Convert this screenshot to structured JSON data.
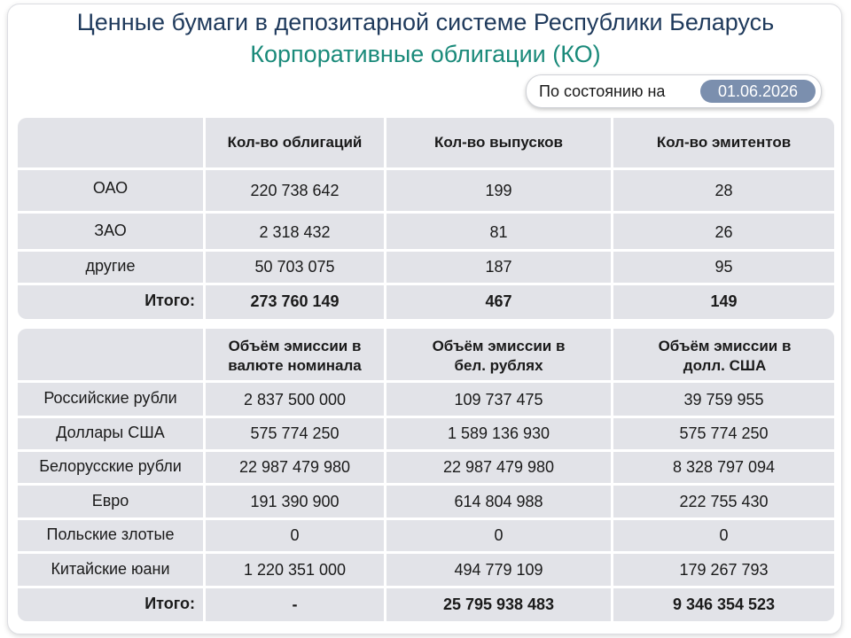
{
  "header": {
    "title": "Ценные бумаги в депозитарной системе Республики Беларусь",
    "subtitle": "Корпоративные облигации (КО)",
    "as_of_label": "По состоянию на",
    "as_of_date": "01.06.2026"
  },
  "table1": {
    "columns": [
      "Кол-во облигаций",
      "Кол-во выпусков",
      "Кол-во эмитентов"
    ],
    "rows": [
      {
        "label": "ОАО",
        "cells": [
          "220 738 642",
          "199",
          "28"
        ]
      },
      {
        "label": "ЗАО",
        "cells": [
          "2 318 432",
          "81",
          "26"
        ]
      },
      {
        "label": "другие",
        "cells": [
          "50 703 075",
          "187",
          "95"
        ]
      }
    ],
    "total": {
      "label": "Итого:",
      "cells": [
        "273 760 149",
        "467",
        "149"
      ]
    }
  },
  "table2": {
    "columns": [
      "Объём эмиссии в валюте номинала",
      "Объём эмиссии в бел. рублях",
      "Объём эмиссии в долл. США"
    ],
    "rows": [
      {
        "label": "Российские рубли",
        "cells": [
          "2 837 500 000",
          "109 737 475",
          "39 759 955"
        ]
      },
      {
        "label": "Доллары США",
        "cells": [
          "575 774 250",
          "1 589 136 930",
          "575 774 250"
        ]
      },
      {
        "label": "Белорусские рубли",
        "cells": [
          "22 987 479 980",
          "22 987 479 980",
          "8 328 797 094"
        ]
      },
      {
        "label": "Евро",
        "cells": [
          "191 390 900",
          "614 804 988",
          "222 755 430"
        ]
      },
      {
        "label": "Польские злотые",
        "cells": [
          "0",
          "0",
          "0"
        ]
      },
      {
        "label": "Китайские юани",
        "cells": [
          "1 220 351 000",
          "494 779 109",
          "179 267 793"
        ]
      }
    ],
    "total": {
      "label": "Итого:",
      "cells": [
        "-",
        "25 795 938 483",
        "9 346 354 523"
      ]
    }
  }
}
